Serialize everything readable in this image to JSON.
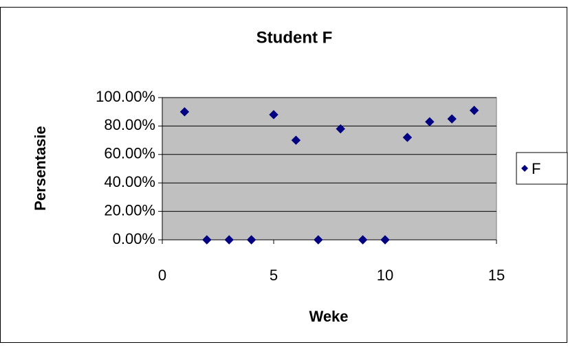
{
  "chart_data": {
    "type": "scatter",
    "title": "Student F",
    "x_label": "Weke",
    "y_label": "Persentasie",
    "series": [
      {
        "name": "F",
        "color": "#000080",
        "x": [
          1,
          2,
          3,
          4,
          5,
          6,
          7,
          8,
          9,
          10,
          11,
          12,
          13,
          14
        ],
        "values": [
          90,
          0,
          0,
          0,
          88,
          70,
          0,
          78,
          0,
          0,
          72,
          83,
          85,
          91
        ]
      }
    ],
    "xlim": [
      0,
      15
    ],
    "xticks": [
      0,
      5,
      10,
      15
    ],
    "ylim": [
      0,
      100
    ],
    "yticks": [
      {
        "value": 0,
        "label": "0.00%"
      },
      {
        "value": 20,
        "label": "20.00%"
      },
      {
        "value": 40,
        "label": "40.00%"
      },
      {
        "value": 60,
        "label": "60.00%"
      },
      {
        "value": 80,
        "label": "80.00%"
      },
      {
        "value": 100,
        "label": "100.00%"
      }
    ],
    "grid": true,
    "legend": "right"
  }
}
